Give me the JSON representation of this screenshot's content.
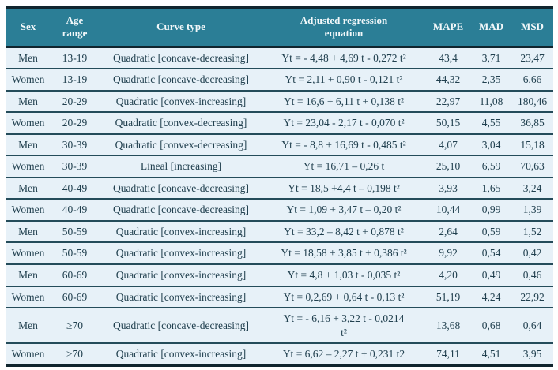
{
  "colors": {
    "header_bg": "#2b7e96",
    "header_text": "#f2f8fa",
    "row_bg": "#e7f1f8",
    "text": "#21404f",
    "border_dark": "#10252e",
    "border_row": "#244c5a"
  },
  "table": {
    "columns": [
      {
        "key": "sex",
        "label": "Sex"
      },
      {
        "key": "age",
        "label": "Age\nrange"
      },
      {
        "key": "curve",
        "label": "Curve type"
      },
      {
        "key": "equation",
        "label": "Adjusted regression\nequation"
      },
      {
        "key": "mape",
        "label": "MAPE"
      },
      {
        "key": "mad",
        "label": "MAD"
      },
      {
        "key": "msd",
        "label": "MSD"
      }
    ],
    "rows": [
      {
        "sex": "Men",
        "age": "13-19",
        "curve": "Quadratic [concave-decreasing]",
        "equation": "Yt = - 4,48 + 4,69 t - 0,272 t²",
        "mape": "43,4",
        "mad": "3,71",
        "msd": "23,47"
      },
      {
        "sex": "Women",
        "age": "13-19",
        "curve": "Quadratic [concave-decreasing]",
        "equation": "Yt = 2,11 + 0,90 t - 0,121 t²",
        "mape": "44,32",
        "mad": "2,35",
        "msd": "6,66"
      },
      {
        "sex": "Men",
        "age": "20-29",
        "curve": "Quadratic [convex-increasing]",
        "equation": "Yt = 16,6 + 6,11 t + 0,138 t²",
        "mape": "22,97",
        "mad": "11,08",
        "msd": "180,46"
      },
      {
        "sex": "Women",
        "age": "20-29",
        "curve": "Quadratic [convex-decreasing]",
        "equation": "Yt = 23,04 - 2,17 t - 0,070 t²",
        "mape": "50,15",
        "mad": "4,55",
        "msd": "36,85"
      },
      {
        "sex": "Men",
        "age": "30-39",
        "curve": "Quadratic [convex-decreasing]",
        "equation": "Yt = - 8,8 + 16,69 t - 0,485 t²",
        "mape": "4,07",
        "mad": "3,04",
        "msd": "15,18"
      },
      {
        "sex": "Women",
        "age": "30-39",
        "curve": "Lineal [increasing]",
        "equation": "Yt = 16,71 – 0,26 t",
        "mape": "25,10",
        "mad": "6,59",
        "msd": "70,63"
      },
      {
        "sex": "Men",
        "age": "40-49",
        "curve": "Quadratic [concave-decreasing]",
        "equation": "Yt = 18,5 +4,4 t – 0,198 t²",
        "mape": "3,93",
        "mad": "1,65",
        "msd": "3,24"
      },
      {
        "sex": "Women",
        "age": "40-49",
        "curve": "Quadratic [concave-decreasing]",
        "equation": "Yt = 1,09 + 3,47 t – 0,20 t²",
        "mape": "10,44",
        "mad": "0,99",
        "msd": "1,39"
      },
      {
        "sex": "Men",
        "age": "50-59",
        "curve": "Quadratic [convex-increasing]",
        "equation": "Yt = 33,2 – 8,42 t + 0,878 t²",
        "mape": "2,64",
        "mad": "0,59",
        "msd": "1,52"
      },
      {
        "sex": "Women",
        "age": "50-59",
        "curve": "Quadratic [convex-increasing]",
        "equation": "Yt = 18,58 + 3,85 t + 0,386 t²",
        "mape": "9,92",
        "mad": "0,54",
        "msd": "0,42"
      },
      {
        "sex": "Men",
        "age": "60-69",
        "curve": "Quadratic [convex-increasing]",
        "equation": "Yt = 4,8 + 1,03 t - 0,035 t²",
        "mape": "4,20",
        "mad": "0,49",
        "msd": "0,46"
      },
      {
        "sex": "Women",
        "age": "60-69",
        "curve": "Quadratic [convex-increasing]",
        "equation": "Yt = 0,2,69 + 0,64 t - 0,13 t²",
        "mape": "51,19",
        "mad": "4,24",
        "msd": "22,92"
      },
      {
        "sex": "Men",
        "age": "≥70",
        "curve": "Quadratic [concave-decreasing]",
        "equation": "Yt = - 6,16 + 3,22 t - 0,0214\nt²",
        "mape": "13,68",
        "mad": "0,68",
        "msd": "0,64"
      },
      {
        "sex": "Women",
        "age": "≥70",
        "curve": "Quadratic [convex-increasing]",
        "equation": "Yt = 6,62 – 2,27 t + 0,231 t2",
        "mape": "74,11",
        "mad": "4,51",
        "msd": "3,95"
      }
    ]
  }
}
